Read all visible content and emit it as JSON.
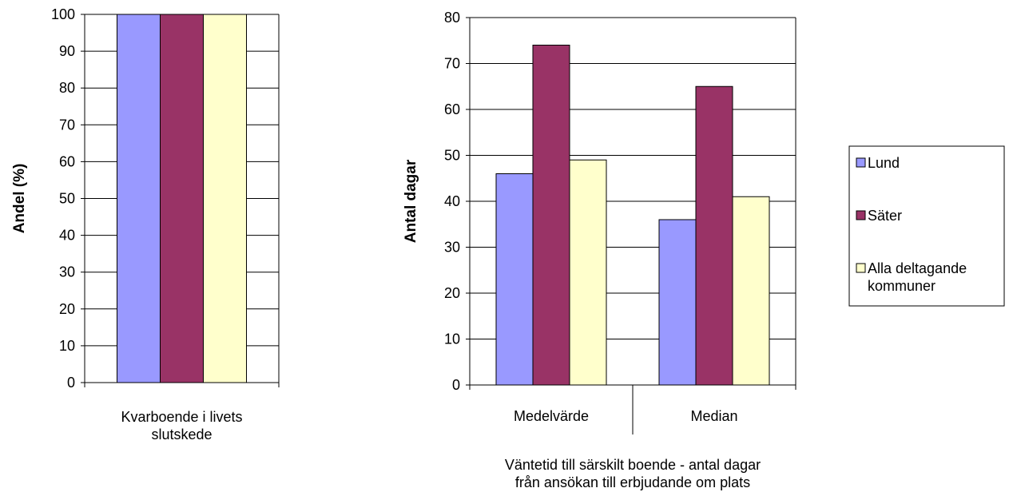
{
  "chart_data": [
    {
      "type": "bar",
      "categories": [
        "Kvarboende i livets slutskede"
      ],
      "category_lines": [
        [
          "Kvarboende i livets",
          "slutskede"
        ]
      ],
      "series": [
        {
          "name": "Lund",
          "values": [
            100
          ],
          "color": "#9999ff"
        },
        {
          "name": "Säter",
          "values": [
            100
          ],
          "color": "#993366"
        },
        {
          "name": "Alla deltagande kommuner",
          "values": [
            100
          ],
          "color": "#ffffcc"
        }
      ],
      "ylabel": "Andel (%)",
      "ylim": [
        0,
        100
      ],
      "yticks": [
        0,
        10,
        20,
        30,
        40,
        50,
        60,
        70,
        80,
        90,
        100
      ],
      "grid": true
    },
    {
      "type": "bar",
      "categories": [
        "Medelvärde",
        "Median"
      ],
      "series": [
        {
          "name": "Lund",
          "values": [
            46,
            36
          ],
          "color": "#9999ff"
        },
        {
          "name": "Säter",
          "values": [
            74,
            65
          ],
          "color": "#993366"
        },
        {
          "name": "Alla deltagande kommuner",
          "values": [
            49,
            41
          ],
          "color": "#ffffcc"
        }
      ],
      "ylabel": "Antal dagar",
      "xlabel_lines": [
        "Väntetid till särskilt boende - antal dagar",
        "från ansökan till erbjudande om plats"
      ],
      "ylim": [
        0,
        80
      ],
      "yticks": [
        0,
        10,
        20,
        30,
        40,
        50,
        60,
        70,
        80
      ],
      "grid": true
    }
  ],
  "legend": {
    "placement": "right",
    "items": [
      {
        "lines": [
          "Lund"
        ],
        "color": "#9999ff"
      },
      {
        "lines": [
          "Säter"
        ],
        "color": "#993366"
      },
      {
        "lines": [
          "Alla deltagande",
          "kommuner"
        ],
        "color": "#ffffcc"
      }
    ]
  }
}
